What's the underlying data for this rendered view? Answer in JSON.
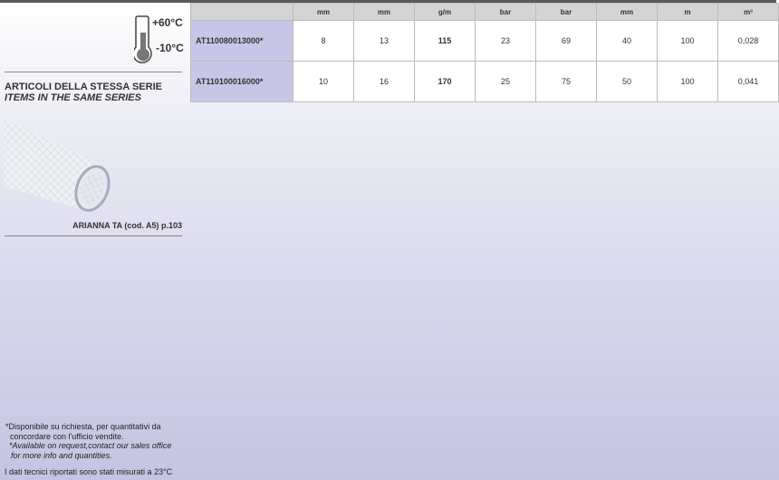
{
  "temperature": {
    "max": "+60°C",
    "min": "-10°C",
    "icon": "thermometer-icon"
  },
  "series": {
    "title_it": "ARTICOLI DELLA STESSA SERIE",
    "title_en": "ITEMS IN THE SAME SERIES",
    "item_caption": "ARIANNA TA (cod. A5) p.103"
  },
  "table": {
    "units": [
      "",
      "mm",
      "mm",
      "g/m",
      "bar",
      "bar",
      "mm",
      "m",
      "m³"
    ],
    "rows": [
      {
        "code": "AT110080013000*",
        "values": [
          "8",
          "13",
          "115",
          "23",
          "69",
          "40",
          "100",
          "0,028"
        ]
      },
      {
        "code": "AT110100016000*",
        "values": [
          "10",
          "16",
          "170",
          "25",
          "75",
          "50",
          "100",
          "0,041"
        ]
      }
    ]
  },
  "notes": {
    "it_line1": "*Disponibile su richiesta, per quantitativi da",
    "it_line2": "concordare con l'ufficio vendite.",
    "en_line1": "*Available on request,contact our sales office",
    "en_line2": "for more info and quantities.",
    "measured": "I dati tecnici riportati sono stati misurati a 23°C"
  }
}
